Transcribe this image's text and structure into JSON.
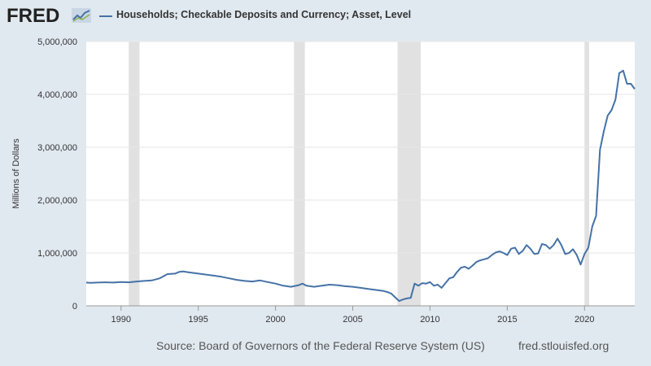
{
  "header": {
    "logo_text": "FRED",
    "logo_icon": "fred-chart-icon",
    "series_label": "Households; Checkable Deposits and Currency; Asset, Level"
  },
  "footer": {
    "source": "Source: Board of Governors of the Federal Reserve System (US)",
    "url": "fred.stlouisfed.org"
  },
  "colors": {
    "line": "#4572a7",
    "recession": "#e1e1e1",
    "grid": "#e6e6e6",
    "background": "#e1e9f0",
    "plot": "#ffffff"
  },
  "chart_data": {
    "type": "line",
    "ylabel": "Millions of Dollars",
    "xlim": [
      1987.75,
      2023.25
    ],
    "ylim": [
      0,
      5000000
    ],
    "y_ticks": [
      0,
      1000000,
      2000000,
      3000000,
      4000000,
      5000000
    ],
    "y_tick_labels": [
      "0",
      "1,000,000",
      "2,000,000",
      "3,000,000",
      "4,000,000",
      "5,000,000"
    ],
    "x_ticks": [
      1990,
      1995,
      2000,
      2005,
      2010,
      2015,
      2020
    ],
    "x_tick_labels": [
      "1990",
      "1995",
      "2000",
      "2005",
      "2010",
      "2015",
      "2020"
    ],
    "grid": true,
    "legend": "top-left",
    "recessions": [
      [
        1990.5,
        1991.2
      ],
      [
        2001.2,
        2001.9
      ],
      [
        2007.9,
        2009.4
      ],
      [
        2020.0,
        2020.3
      ]
    ],
    "series": [
      {
        "name": "Households; Checkable Deposits and Currency; Asset, Level",
        "x": [
          1987.75,
          1988.0,
          1988.5,
          1989.0,
          1989.5,
          1990.0,
          1990.5,
          1991.0,
          1991.5,
          1992.0,
          1992.5,
          1992.75,
          1993.0,
          1993.5,
          1993.75,
          1994.0,
          1994.5,
          1995.0,
          1995.5,
          1996.0,
          1996.5,
          1997.0,
          1997.5,
          1998.0,
          1998.5,
          1999.0,
          1999.5,
          2000.0,
          2000.5,
          2001.0,
          2001.5,
          2001.75,
          2002.0,
          2002.5,
          2003.0,
          2003.5,
          2004.0,
          2004.5,
          2005.0,
          2005.5,
          2006.0,
          2006.5,
          2007.0,
          2007.25,
          2007.5,
          2007.75,
          2008.0,
          2008.25,
          2008.5,
          2008.75,
          2009.0,
          2009.25,
          2009.5,
          2009.75,
          2010.0,
          2010.25,
          2010.5,
          2010.75,
          2011.0,
          2011.25,
          2011.5,
          2011.75,
          2012.0,
          2012.25,
          2012.5,
          2012.75,
          2013.0,
          2013.25,
          2013.5,
          2013.75,
          2014.0,
          2014.25,
          2014.5,
          2014.75,
          2015.0,
          2015.25,
          2015.5,
          2015.75,
          2016.0,
          2016.25,
          2016.5,
          2016.75,
          2017.0,
          2017.25,
          2017.5,
          2017.75,
          2018.0,
          2018.25,
          2018.5,
          2018.75,
          2019.0,
          2019.25,
          2019.5,
          2019.75,
          2020.0,
          2020.25,
          2020.5,
          2020.75,
          2021.0,
          2021.25,
          2021.5,
          2021.75,
          2022.0,
          2022.25,
          2022.5,
          2022.75,
          2023.0,
          2023.25
        ],
        "values": [
          440000,
          435000,
          440000,
          445000,
          440000,
          450000,
          445000,
          460000,
          470000,
          480000,
          520000,
          560000,
          600000,
          610000,
          640000,
          650000,
          630000,
          610000,
          590000,
          570000,
          550000,
          520000,
          490000,
          470000,
          460000,
          480000,
          450000,
          420000,
          380000,
          360000,
          390000,
          420000,
          380000,
          360000,
          380000,
          400000,
          390000,
          370000,
          360000,
          340000,
          320000,
          300000,
          280000,
          260000,
          230000,
          160000,
          90000,
          120000,
          140000,
          150000,
          420000,
          380000,
          430000,
          420000,
          450000,
          380000,
          400000,
          340000,
          430000,
          520000,
          540000,
          640000,
          720000,
          740000,
          700000,
          760000,
          830000,
          860000,
          880000,
          900000,
          960000,
          1010000,
          1030000,
          1000000,
          960000,
          1080000,
          1100000,
          980000,
          1040000,
          1150000,
          1080000,
          980000,
          990000,
          1170000,
          1150000,
          1080000,
          1150000,
          1270000,
          1150000,
          980000,
          1000000,
          1070000,
          960000,
          780000,
          980000,
          1100000,
          1500000,
          1700000,
          2950000,
          3300000,
          3600000,
          3700000,
          3900000,
          4400000,
          4450000,
          4200000,
          4200000,
          4100000
        ]
      }
    ]
  }
}
